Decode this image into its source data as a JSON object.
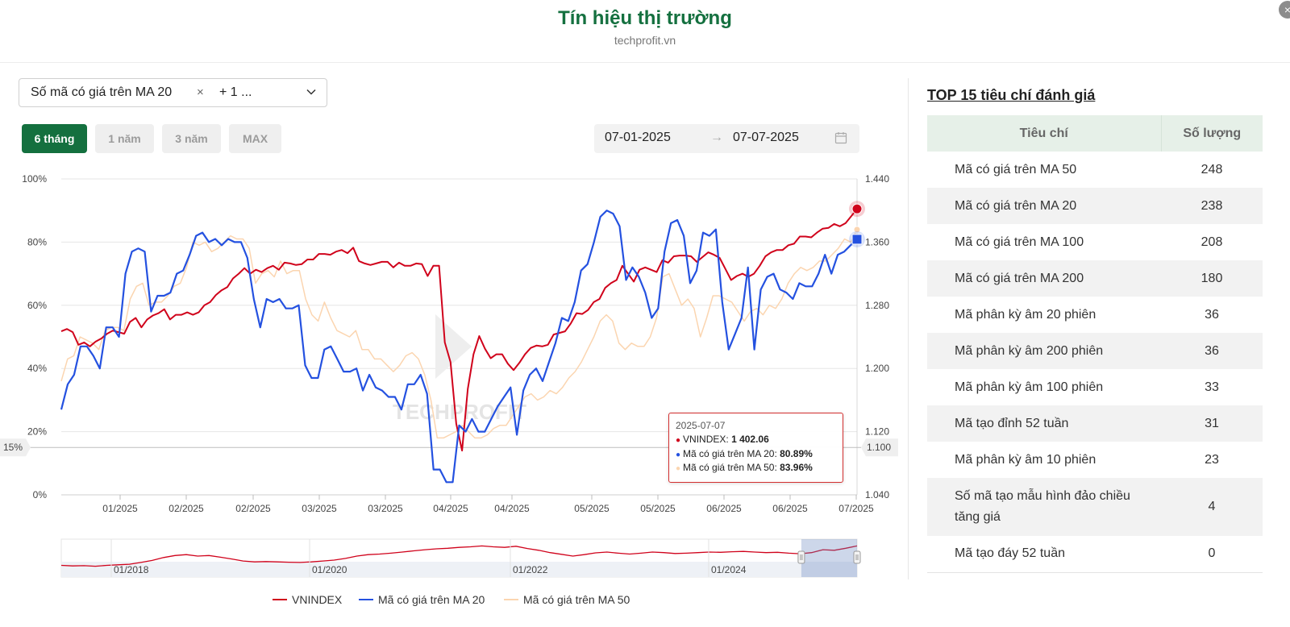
{
  "page": {
    "title": "Tín hiệu thị trường",
    "subtitle": "techprofit.vn",
    "close_label": "×"
  },
  "controls": {
    "metric_select": {
      "selected_tag": "Số mã có giá trên MA 20",
      "remove_label": "×",
      "more_label": "+ 1 ..."
    },
    "ranges": [
      {
        "label": "6 tháng",
        "active": true
      },
      {
        "label": "1 năm",
        "active": false
      },
      {
        "label": "3 năm",
        "active": false
      },
      {
        "label": "MAX",
        "active": false
      }
    ],
    "date_range": {
      "start": "07-01-2025",
      "arrow": "→",
      "end": "07-07-2025"
    }
  },
  "chart_data": {
    "type": "line",
    "watermark": "TECHPROFIT",
    "x_ticks": [
      "01/2025",
      "02/2025",
      "02/2025",
      "03/2025",
      "03/2025",
      "04/2025",
      "04/2025",
      "05/2025",
      "05/2025",
      "06/2025",
      "06/2025",
      "07/2025"
    ],
    "y_left": {
      "ticks": [
        "0%",
        "20%",
        "40%",
        "60%",
        "80%",
        "100%"
      ],
      "range": [
        0,
        100
      ]
    },
    "y_right": {
      "ticks": [
        "1.040",
        "1.120",
        "1.200",
        "1.280",
        "1.360",
        "1.440"
      ],
      "range": [
        1040,
        1440
      ]
    },
    "crosshair": {
      "left_label": "15%",
      "left_value": 15,
      "right_label": "1.100",
      "right_value": 1100
    },
    "colors": {
      "vnindex": "#d0021b",
      "ma20": "#2451e0",
      "ma50": "#fbd5b0"
    },
    "series": [
      {
        "name": "VNINDEX",
        "axis": "right",
        "values": [
          1247,
          1250,
          1246,
          1230,
          1233,
          1228,
          1234,
          1238,
          1244,
          1248,
          1246,
          1244,
          1259,
          1264,
          1252,
          1262,
          1267,
          1270,
          1275,
          1262,
          1268,
          1268,
          1271,
          1268,
          1271,
          1280,
          1284,
          1293,
          1299,
          1303,
          1314,
          1320,
          1327,
          1320,
          1325,
          1322,
          1327,
          1330,
          1325,
          1334,
          1333,
          1331,
          1332,
          1338,
          1338,
          1345,
          1345,
          1344,
          1348,
          1350,
          1346,
          1353,
          1336,
          1333,
          1331,
          1333,
          1335,
          1335,
          1328,
          1334,
          1330,
          1330,
          1333,
          1332,
          1317,
          1330,
          1330,
          1233,
          1208,
          1130,
          1096,
          1174,
          1218,
          1241,
          1225,
          1213,
          1218,
          1218,
          1206,
          1198,
          1207,
          1218,
          1226,
          1229,
          1228,
          1230,
          1243,
          1245,
          1247,
          1257,
          1270,
          1269,
          1274,
          1284,
          1288,
          1302,
          1308,
          1312,
          1330,
          1320,
          1310,
          1325,
          1328,
          1325,
          1322,
          1337,
          1334,
          1342,
          1343,
          1343,
          1342,
          1335,
          1341,
          1347,
          1344,
          1340,
          1326,
          1312,
          1317,
          1320,
          1316,
          1320,
          1330,
          1342,
          1347,
          1350,
          1350,
          1356,
          1358,
          1367,
          1367,
          1366,
          1372,
          1377,
          1378,
          1383,
          1380,
          1384,
          1393,
          1402.06
        ]
      },
      {
        "name": "Mã có giá trên MA 20",
        "axis": "left",
        "values": [
          27,
          35,
          38,
          47,
          47,
          44,
          40,
          53,
          53,
          50,
          70,
          77,
          78,
          77,
          58,
          63,
          63,
          64,
          70,
          71,
          76,
          82,
          83,
          80,
          81,
          79,
          81,
          80,
          80,
          75,
          62,
          53,
          62,
          61,
          62,
          59,
          59,
          60,
          41,
          37,
          37,
          46,
          47,
          43,
          39,
          39,
          40,
          33,
          38,
          34,
          33,
          31,
          31,
          27,
          35,
          35,
          38,
          32,
          8,
          8,
          4,
          4,
          22,
          20,
          24,
          20,
          20,
          24,
          28,
          31,
          34,
          19,
          33,
          38,
          40,
          36,
          42,
          48,
          56,
          55,
          61,
          71,
          73,
          80,
          88,
          90,
          89,
          85,
          68,
          72,
          69,
          64,
          56,
          59,
          77,
          86,
          87,
          82,
          67,
          71,
          83,
          82,
          84,
          61,
          46,
          51,
          56,
          72,
          46,
          65,
          69,
          70,
          65,
          64,
          62,
          67,
          66,
          66,
          70,
          76,
          70,
          76,
          77,
          79,
          80.89
        ]
      },
      {
        "name": "Mã có giá trên MA 50",
        "axis": "left",
        "values": [
          36,
          43,
          44,
          50,
          49,
          48,
          46,
          52,
          53,
          53,
          52,
          62,
          66,
          67,
          60,
          61,
          61,
          63,
          66,
          67,
          72,
          80,
          79,
          80,
          77,
          78,
          80,
          82,
          81,
          81,
          78,
          67,
          70,
          71,
          69,
          74,
          70,
          71,
          71,
          62,
          57,
          55,
          61,
          56,
          52,
          51,
          50,
          52,
          46,
          46,
          43,
          43,
          41,
          39,
          41,
          44,
          45,
          43,
          38,
          30,
          18,
          18,
          19,
          20,
          22,
          20,
          18,
          18,
          19,
          21,
          22,
          22,
          25,
          28,
          31,
          32,
          30,
          31,
          33,
          32,
          34,
          37,
          39,
          42,
          46,
          50,
          55,
          57,
          55,
          48,
          46,
          48,
          47,
          47,
          50,
          56,
          69,
          70,
          65,
          60,
          62,
          59,
          50,
          56,
          63,
          63,
          62,
          61,
          58,
          55,
          58,
          59,
          57,
          60,
          59,
          62,
          67,
          70,
          72,
          71,
          72,
          74,
          74,
          76,
          78,
          81,
          80,
          83.96
        ]
      }
    ],
    "tooltip": {
      "date": "2025-07-07",
      "rows": [
        {
          "label": "VNINDEX: ",
          "value": "1 402.06",
          "color": "#d0021b"
        },
        {
          "label": "Mã có giá trên MA 20: ",
          "value": "80.89%",
          "color": "#2451e0"
        },
        {
          "label": "Mã có giá trên MA 50: ",
          "value": "83.96%",
          "color": "#fbd5b0"
        }
      ]
    },
    "navigator": {
      "ticks": [
        "01/2018",
        "01/2020",
        "01/2022",
        "01/2024"
      ],
      "shape": [
        18,
        16,
        17,
        15,
        18,
        20,
        22,
        28,
        35,
        45,
        52,
        55,
        50,
        52,
        46,
        40,
        33,
        30,
        31,
        30,
        29,
        28,
        30,
        33,
        36,
        42,
        50,
        55,
        57,
        60,
        64,
        68,
        72,
        75,
        77,
        80,
        82,
        85,
        82,
        80,
        84,
        76,
        70,
        62,
        56,
        50,
        55,
        61,
        64,
        60,
        57,
        60,
        64,
        62,
        59,
        60,
        62,
        64,
        63,
        65,
        66,
        64,
        62,
        63,
        60,
        58,
        62,
        72,
        70,
        77,
        85
      ],
      "selected_fraction": [
        0.93,
        1.0
      ]
    }
  },
  "legend": [
    {
      "label": "VNINDEX",
      "color": "#d0021b"
    },
    {
      "label": "Mã có giá trên MA 20",
      "color": "#2451e0"
    },
    {
      "label": "Mã có giá trên MA 50",
      "color": "#fbd5b0"
    }
  ],
  "top_panel": {
    "title": "TOP 15 tiêu chí đánh giá",
    "columns": [
      "Tiêu chí",
      "Số lượng"
    ],
    "rows": [
      {
        "name": "Mã có giá trên MA 50",
        "count": "248"
      },
      {
        "name": "Mã có giá trên MA 20",
        "count": "238"
      },
      {
        "name": "Mã có giá trên MA 100",
        "count": "208"
      },
      {
        "name": "Mã có giá trên MA 200",
        "count": "180"
      },
      {
        "name": "Mã phân kỳ âm 20 phiên",
        "count": "36"
      },
      {
        "name": "Mã phân kỳ âm 200 phiên",
        "count": "36"
      },
      {
        "name": "Mã phân kỳ âm 100 phiên",
        "count": "33"
      },
      {
        "name": "Mã tạo đỉnh 52 tuần",
        "count": "31"
      },
      {
        "name": "Mã phân kỳ âm 10 phiên",
        "count": "23"
      },
      {
        "name": "Số mã tạo mẫu hình đảo chiều tăng giá",
        "count": "4"
      },
      {
        "name": "Mã tạo đáy 52 tuần",
        "count": "0"
      }
    ]
  }
}
